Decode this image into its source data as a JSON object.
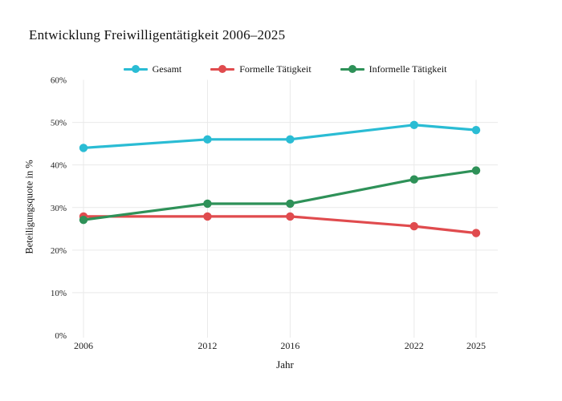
{
  "title": "Entwicklung Freiwilligentätigkeit 2006–2025",
  "chart_data": {
    "type": "line",
    "title": "Entwicklung Freiwilligentätigkeit 2006–2025",
    "xlabel": "Jahr",
    "ylabel": "Beteiligungsquote in %",
    "x": [
      2006,
      2012,
      2016,
      2022,
      2025
    ],
    "x_tick_labels": [
      "2006",
      "2012",
      "2016",
      "2022",
      "2025"
    ],
    "xlim": [
      2006,
      2025
    ],
    "ylim": [
      0,
      60
    ],
    "yticks": [
      0,
      10,
      20,
      30,
      40,
      50,
      60
    ],
    "ytick_labels": [
      "0%",
      "10%",
      "20%",
      "30%",
      "40%",
      "50%",
      "60%"
    ],
    "grid": true,
    "gridline_color": "#e9e9e9",
    "legend_position": "top-center",
    "series": [
      {
        "name": "Gesamt",
        "color": "#2abcd4",
        "values": [
          44.0,
          46.0,
          46.0,
          49.4,
          48.2
        ]
      },
      {
        "name": "Formelle Tätigkeit",
        "color": "#e04b4e",
        "values": [
          27.9,
          27.9,
          27.9,
          25.6,
          24.0
        ]
      },
      {
        "name": "Informelle Tätigkeit",
        "color": "#2e9158",
        "values": [
          27.1,
          30.9,
          30.9,
          36.6,
          38.7
        ]
      }
    ]
  }
}
